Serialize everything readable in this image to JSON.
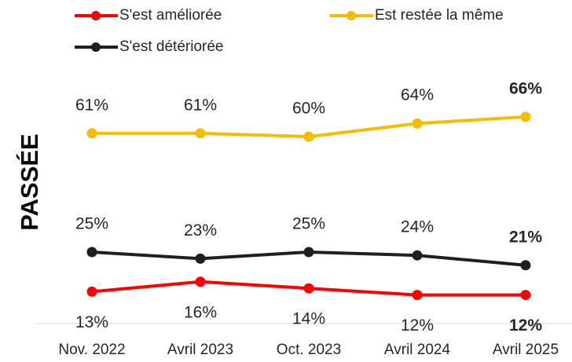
{
  "chart_data": {
    "type": "line",
    "y_label": "PASSÉE",
    "categories": [
      "Nov. 2022",
      "Avril 2023",
      "Oct. 2023",
      "Avril 2024",
      "Avril 2025"
    ],
    "series": [
      {
        "name": "S'est améliorée",
        "color": "#ff0000",
        "values": [
          13,
          16,
          14,
          12,
          12
        ],
        "value_labels": [
          "13%",
          "16%",
          "14%",
          "12%",
          "12%"
        ]
      },
      {
        "name": "Est restée la même",
        "color": "#f5bc00",
        "values": [
          61,
          61,
          60,
          64,
          66
        ],
        "value_labels": [
          "61%",
          "61%",
          "60%",
          "64%",
          "66%"
        ]
      },
      {
        "name": "S'est détériorée",
        "color": "#1f1f1f",
        "values": [
          25,
          23,
          25,
          24,
          21
        ],
        "value_labels": [
          "25%",
          "23%",
          "25%",
          "24%",
          "21%"
        ]
      }
    ],
    "ylim": [
      0,
      70
    ]
  }
}
